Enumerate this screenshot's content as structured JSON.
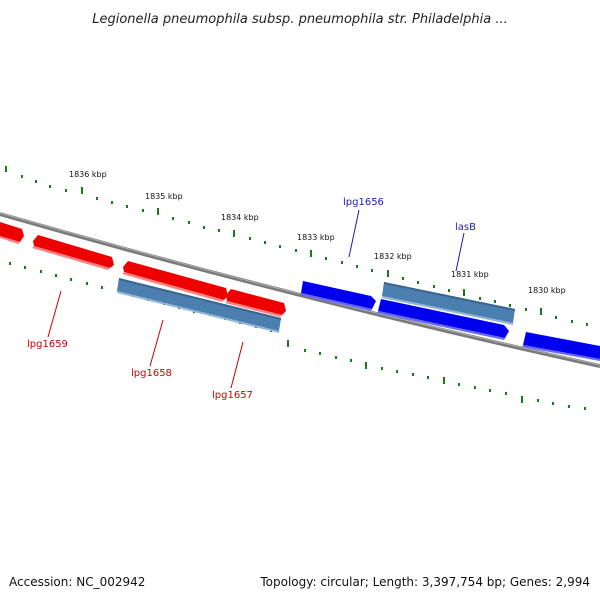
{
  "title": "Legionella pneumophila subsp. pneumophila str. Philadelphia ...",
  "footer": {
    "accession": "Accession: NC_002942",
    "summary": "Topology: circular; Length: 3,397,754 bp; Genes: 2,994"
  },
  "kbp_labels": [
    "1836 kbp",
    "1835 kbp",
    "1834 kbp",
    "1833 kbp",
    "1832 kbp",
    "1831 kbp",
    "1830 kbp"
  ],
  "gene_labels": [
    {
      "text": "lpg1656",
      "color": "#1a1ab0"
    },
    {
      "text": "lasB",
      "color": "#1a1ab0"
    },
    {
      "text": "lpg1659",
      "color": "#cc0000"
    },
    {
      "text": "lpg1658",
      "color": "#cc0000"
    },
    {
      "text": "lpg1657",
      "color": "#cc0000"
    }
  ],
  "colors": {
    "forward_gene": "#0000ee",
    "reverse_gene": "#ee0000",
    "steelblue_gene": "#4a7fb0",
    "backbone": "#808080",
    "tick": "#1a7a1a"
  }
}
